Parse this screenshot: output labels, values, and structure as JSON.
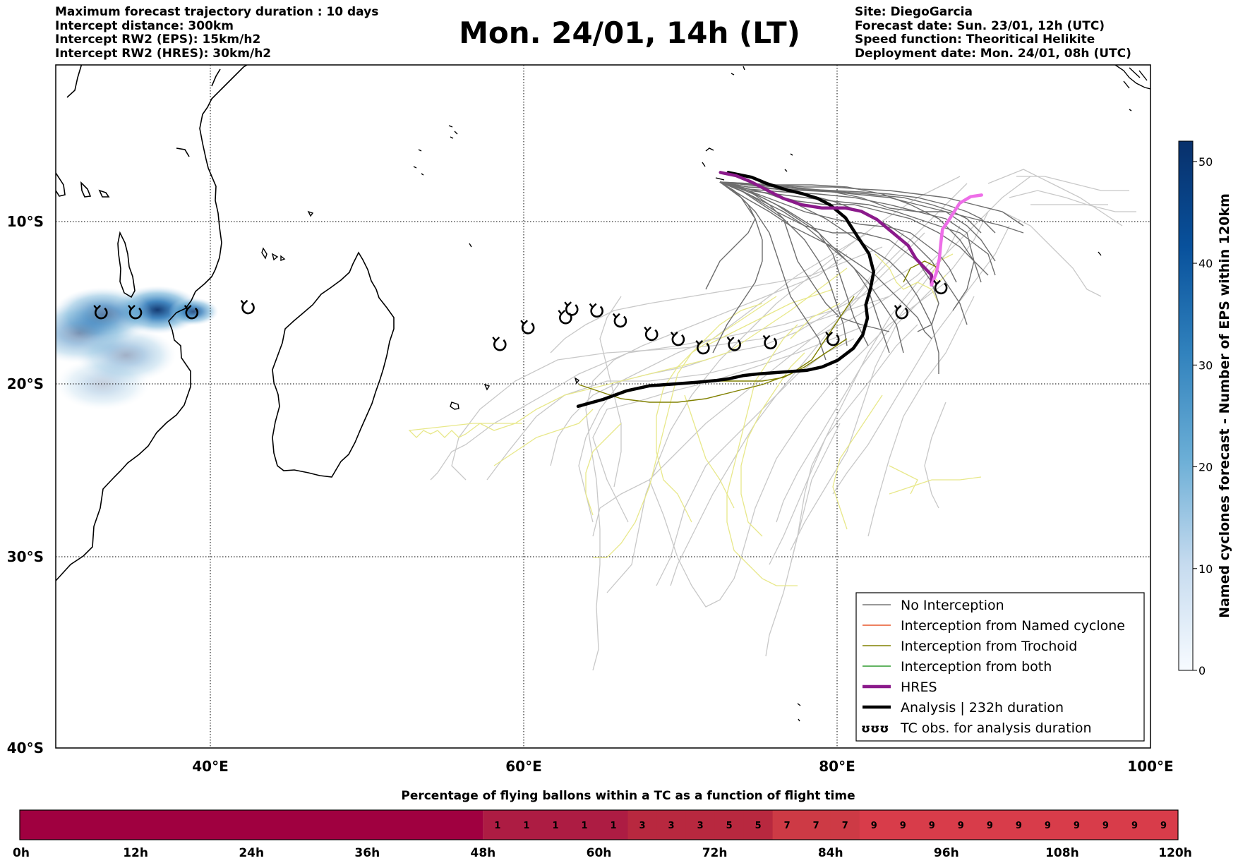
{
  "header": {
    "title": "Mon. 24/01, 14h (LT)",
    "left_lines": [
      "Maximum forecast trajectory duration : 10 days",
      "Intercept distance: 300km",
      "Intercept RW2 (EPS):  15km/h2",
      "Intercept RW2 (HRES): 30km/h2"
    ],
    "right_lines": [
      "Site: DiegoGarcia",
      "Forecast date: Sun. 23/01, 12h (UTC)",
      "Speed function: Theoritical Helikite",
      "Deployment date: Mon. 24/01, 08h (UTC)"
    ]
  },
  "map": {
    "lon_ticks": [
      "40°E",
      "60°E",
      "80°E",
      "100°E"
    ],
    "lat_ticks": [
      "10°S",
      "20°S",
      "30°S",
      "40°S"
    ],
    "extent": {
      "lon": [
        30,
        100
      ],
      "lat": [
        -40,
        -1
      ]
    },
    "tc_observations_lonlat": [
      [
        32.9,
        -16.3
      ],
      [
        35.1,
        -16.3
      ],
      [
        38.7,
        -16.3
      ],
      [
        42.3,
        -16.0
      ],
      [
        58.4,
        -18.2
      ],
      [
        60.2,
        -17.2
      ],
      [
        62.6,
        -16.6
      ],
      [
        63.0,
        -16.1
      ],
      [
        64.6,
        -16.2
      ],
      [
        66.1,
        -16.8
      ],
      [
        68.1,
        -17.6
      ],
      [
        69.8,
        -17.9
      ],
      [
        71.4,
        -18.4
      ],
      [
        73.4,
        -18.2
      ],
      [
        75.7,
        -18.1
      ],
      [
        79.7,
        -17.9
      ],
      [
        84.1,
        -16.3
      ],
      [
        86.6,
        -14.8
      ]
    ],
    "analysis_track_lonlat": [
      [
        63.4,
        -21.8
      ],
      [
        65.0,
        -21.4
      ],
      [
        66.5,
        -20.9
      ],
      [
        68.0,
        -20.6
      ],
      [
        69.5,
        -20.5
      ],
      [
        71.0,
        -20.4
      ],
      [
        72.2,
        -20.3
      ],
      [
        73.0,
        -20.2
      ],
      [
        74.0,
        -20.0
      ],
      [
        75.0,
        -19.9
      ],
      [
        76.5,
        -19.8
      ],
      [
        78.0,
        -19.7
      ],
      [
        79.0,
        -19.5
      ],
      [
        80.0,
        -19.1
      ],
      [
        81.0,
        -18.4
      ],
      [
        81.6,
        -17.6
      ],
      [
        81.9,
        -16.6
      ],
      [
        81.8,
        -15.8
      ],
      [
        82.1,
        -14.8
      ],
      [
        82.3,
        -13.8
      ],
      [
        82.0,
        -12.7
      ],
      [
        81.3,
        -11.7
      ],
      [
        80.5,
        -10.5
      ],
      [
        79.5,
        -9.7
      ],
      [
        78.7,
        -9.3
      ],
      [
        77.7,
        -9.0
      ],
      [
        76.8,
        -8.8
      ],
      [
        75.5,
        -8.4
      ],
      [
        74.5,
        -8.0
      ],
      [
        73.0,
        -7.7
      ]
    ],
    "hres_track_lonlat": [
      [
        72.5,
        -7.7
      ],
      [
        73.5,
        -7.9
      ],
      [
        74.5,
        -8.3
      ],
      [
        75.5,
        -8.8
      ],
      [
        76.5,
        -9.3
      ],
      [
        77.7,
        -9.7
      ],
      [
        79.0,
        -9.9
      ],
      [
        80.5,
        -9.9
      ],
      [
        81.5,
        -10.1
      ],
      [
        82.5,
        -10.6
      ],
      [
        83.5,
        -11.4
      ],
      [
        84.5,
        -12.2
      ],
      [
        85.0,
        -13.0
      ],
      [
        85.6,
        -13.6
      ],
      [
        86.0,
        -14.0
      ],
      [
        86.0,
        -14.6
      ]
    ],
    "hres_extension_lonlat": [
      [
        86.0,
        -14.6
      ],
      [
        86.3,
        -13.9
      ],
      [
        86.5,
        -13.0
      ],
      [
        86.6,
        -12.0
      ],
      [
        86.7,
        -11.2
      ],
      [
        87.0,
        -10.8
      ],
      [
        87.4,
        -10.2
      ],
      [
        87.8,
        -9.6
      ],
      [
        88.5,
        -9.2
      ],
      [
        89.2,
        -9.1
      ]
    ],
    "heatmap_centers_lonlat": [
      [
        36.5,
        -16.1,
        2.8,
        1.0
      ],
      [
        33.0,
        -16.4,
        3.2,
        0.75
      ],
      [
        38.8,
        -16.2,
        1.6,
        0.85
      ],
      [
        31.5,
        -17.5,
        3.5,
        0.5
      ],
      [
        34.5,
        -18.8,
        3.2,
        0.4
      ],
      [
        33.0,
        -20.5,
        3.0,
        0.25
      ]
    ]
  },
  "legend": {
    "items": [
      {
        "label": "No Interception",
        "color": "#777777"
      },
      {
        "label": "Interception from Named cyclone",
        "color": "#e8562a"
      },
      {
        "label": "Interception from Trochoid",
        "color": "#808000"
      },
      {
        "label": "Interception from both",
        "color": "#2e9c2e"
      },
      {
        "label": "HRES",
        "color": "#8b1a8b"
      },
      {
        "label": "Analysis | 232h duration",
        "color": "#000000"
      },
      {
        "label": "TC obs. for analysis duration",
        "color": "#000000"
      }
    ],
    "tc_obs_symbol": "ʊʊʊ"
  },
  "colorbar": {
    "label": "Named cyclones forecast - Number of EPS within 120km",
    "ticks": [
      "0",
      "10",
      "20",
      "30",
      "40",
      "50"
    ],
    "max": 52
  },
  "bottom_bar": {
    "title": "Percentage of flying ballons within a TC as a function of flight time",
    "hours_labels": [
      "0h",
      "12h",
      "24h",
      "36h",
      "48h",
      "60h",
      "72h",
      "84h",
      "96h",
      "108h",
      "120h"
    ],
    "cell_values": [
      "1",
      "1",
      "1",
      "1",
      "1",
      "3",
      "3",
      "3",
      "5",
      "5",
      "7",
      "7",
      "7",
      "9",
      "9",
      "9",
      "9",
      "9",
      "9",
      "9",
      "9",
      "9",
      "9",
      "9"
    ],
    "colors": {
      "zero": "#a00040",
      "low": "#ad1c43",
      "mid": "#b8283f",
      "high": "#cd3a45",
      "top": "#d83c4a"
    }
  }
}
